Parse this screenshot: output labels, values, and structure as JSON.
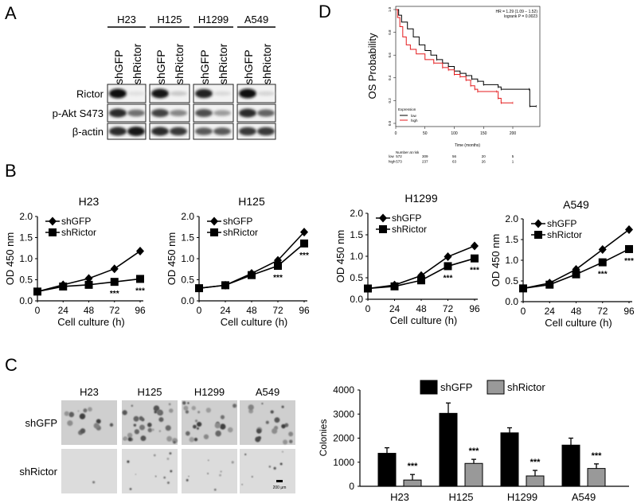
{
  "panel_labels": {
    "a": "A",
    "b": "B",
    "c": "C",
    "d": "D"
  },
  "western_blot": {
    "cell_lines": [
      "H23",
      "H125",
      "H1299",
      "A549"
    ],
    "lanes": [
      "shGFP",
      "shRictor"
    ],
    "rows": [
      {
        "label": "Rictor",
        "band_intensity": [
          [
            1.0,
            0.05
          ],
          [
            0.95,
            0.15
          ],
          [
            0.9,
            0.08
          ],
          [
            1.0,
            0.1
          ]
        ]
      },
      {
        "label": "p-Akt S473",
        "band_intensity": [
          [
            0.85,
            0.55
          ],
          [
            0.75,
            0.45
          ],
          [
            0.7,
            0.35
          ],
          [
            0.85,
            0.6
          ]
        ]
      },
      {
        "label": "β-actin",
        "band_intensity": [
          [
            0.85,
            0.95
          ],
          [
            0.85,
            0.8
          ],
          [
            0.65,
            0.65
          ],
          [
            0.8,
            0.8
          ]
        ]
      }
    ]
  },
  "chart_data": [
    {
      "type": "line",
      "title": "H23",
      "xlabel": "Cell culture (h)",
      "ylabel": "OD 450 nm",
      "x": [
        0,
        24,
        48,
        72,
        96
      ],
      "xticks": [
        "0",
        "24",
        "48",
        "72",
        "96"
      ],
      "ylim": [
        0,
        2
      ],
      "yticks": [
        "0.0",
        "0.5",
        "1.0",
        "1.5",
        "2.0"
      ],
      "legend": "top-left",
      "grid": false,
      "series": [
        {
          "name": "shGFP",
          "marker": "diamond",
          "values": [
            0.22,
            0.38,
            0.53,
            0.76,
            1.18
          ]
        },
        {
          "name": "shRictor",
          "marker": "square",
          "values": [
            0.22,
            0.34,
            0.38,
            0.45,
            0.52
          ]
        }
      ],
      "annotations": [
        {
          "x": 72,
          "text": "***"
        },
        {
          "x": 96,
          "text": "***"
        }
      ]
    },
    {
      "type": "line",
      "title": "H125",
      "xlabel": "Cell culture (h)",
      "ylabel": "OD 450 nm",
      "x": [
        0,
        24,
        48,
        72,
        96
      ],
      "xticks": [
        "0",
        "24",
        "48",
        "72",
        "96"
      ],
      "ylim": [
        0,
        2
      ],
      "yticks": [
        "0.0",
        "0.5",
        "1.0",
        "1.5",
        "2.0"
      ],
      "legend": "top-left",
      "grid": false,
      "series": [
        {
          "name": "shGFP",
          "marker": "diamond",
          "values": [
            0.3,
            0.37,
            0.65,
            0.96,
            1.63
          ]
        },
        {
          "name": "shRictor",
          "marker": "square",
          "values": [
            0.3,
            0.37,
            0.61,
            0.83,
            1.36
          ]
        }
      ],
      "annotations": [
        {
          "x": 72,
          "text": "***"
        },
        {
          "x": 96,
          "text": "***"
        }
      ]
    },
    {
      "type": "line",
      "title": "H1299",
      "xlabel": "Cell culture (h)",
      "ylabel": "OD 450 nm",
      "x": [
        0,
        24,
        48,
        72,
        96
      ],
      "xticks": [
        "0",
        "24",
        "48",
        "72",
        "96"
      ],
      "ylim": [
        0,
        2
      ],
      "yticks": [
        "0.0",
        "0.5",
        "1.0",
        "1.5",
        "2.0"
      ],
      "legend": "top-left",
      "grid": false,
      "series": [
        {
          "name": "shGFP",
          "marker": "diamond",
          "values": [
            0.25,
            0.33,
            0.55,
            0.99,
            1.24
          ]
        },
        {
          "name": "shRictor",
          "marker": "square",
          "values": [
            0.25,
            0.3,
            0.44,
            0.77,
            0.95
          ]
        }
      ],
      "annotations": [
        {
          "x": 72,
          "text": "***"
        },
        {
          "x": 96,
          "text": "***"
        }
      ]
    },
    {
      "type": "line",
      "title": "A549",
      "xlabel": "Cell culture (h)",
      "ylabel": "OD 450 nm",
      "x": [
        0,
        24,
        48,
        72,
        96
      ],
      "xticks": [
        "0",
        "24",
        "48",
        "72",
        "96"
      ],
      "ylim": [
        0,
        2
      ],
      "yticks": [
        "0.0",
        "0.5",
        "1.0",
        "1.5",
        "2.0"
      ],
      "legend": "top-left",
      "grid": false,
      "series": [
        {
          "name": "shGFP",
          "marker": "diamond",
          "values": [
            0.32,
            0.45,
            0.78,
            1.26,
            1.74
          ]
        },
        {
          "name": "shRictor",
          "marker": "square",
          "values": [
            0.32,
            0.41,
            0.66,
            0.95,
            1.27
          ]
        }
      ],
      "annotations": [
        {
          "x": 72,
          "text": "***"
        },
        {
          "x": 96,
          "text": "***"
        }
      ]
    },
    {
      "type": "bar",
      "ylabel": "Colonies",
      "categories": [
        "H23",
        "H125",
        "H1299",
        "A549"
      ],
      "ylim": [
        0,
        4000
      ],
      "yticks": [
        "0",
        "1000",
        "2000",
        "3000",
        "4000"
      ],
      "legend": "top",
      "grid": false,
      "series": [
        {
          "name": "shGFP",
          "color": "#000000",
          "values": [
            1370,
            3030,
            2220,
            1710
          ],
          "errors": [
            230,
            430,
            210,
            290
          ]
        },
        {
          "name": "shRictor",
          "color": "#999999",
          "values": [
            260,
            950,
            430,
            740
          ],
          "errors": [
            230,
            170,
            230,
            190
          ]
        }
      ],
      "annotations": [
        "***",
        "***",
        "***",
        "***"
      ]
    },
    {
      "type": "line",
      "subtype": "kaplan-meier",
      "ylabel": "OS Probability",
      "xlabel": "Time (months)",
      "xlim": [
        0,
        240
      ],
      "xticks": [
        "0",
        "50",
        "100",
        "150",
        "200"
      ],
      "ylim": [
        0,
        1
      ],
      "yticks": [
        "0.0",
        "0.2",
        "0.4",
        "0.6",
        "0.8",
        "1.0"
      ],
      "stats": [
        "HR = 1.29 (1.09 − 1.52)",
        "logrank P = 0.0023"
      ],
      "legend_title": "Expression",
      "legend": "bottom-left",
      "series": [
        {
          "name": "low",
          "color": "#000000",
          "points": [
            [
              0,
              1
            ],
            [
              5,
              0.95
            ],
            [
              10,
              0.89
            ],
            [
              20,
              0.83
            ],
            [
              30,
              0.76
            ],
            [
              40,
              0.69
            ],
            [
              50,
              0.64
            ],
            [
              60,
              0.6
            ],
            [
              70,
              0.56
            ],
            [
              80,
              0.53
            ],
            [
              90,
              0.5
            ],
            [
              100,
              0.46
            ],
            [
              110,
              0.44
            ],
            [
              120,
              0.42
            ],
            [
              130,
              0.39
            ],
            [
              140,
              0.37
            ],
            [
              150,
              0.34
            ],
            [
              175,
              0.32
            ],
            [
              180,
              0.3
            ],
            [
              228,
              0.3
            ],
            [
              229,
              0.15
            ],
            [
              240,
              0.15
            ]
          ]
        },
        {
          "name": "high",
          "color": "#e41a1c",
          "points": [
            [
              0,
              1
            ],
            [
              3,
              0.93
            ],
            [
              7,
              0.85
            ],
            [
              12,
              0.76
            ],
            [
              18,
              0.69
            ],
            [
              25,
              0.65
            ],
            [
              35,
              0.61
            ],
            [
              50,
              0.56
            ],
            [
              65,
              0.53
            ],
            [
              80,
              0.49
            ],
            [
              90,
              0.47
            ],
            [
              100,
              0.43
            ],
            [
              110,
              0.41
            ],
            [
              120,
              0.38
            ],
            [
              128,
              0.33
            ],
            [
              135,
              0.3
            ],
            [
              140,
              0.28
            ],
            [
              172,
              0.28
            ],
            [
              175,
              0.22
            ],
            [
              180,
              0.18
            ],
            [
              200,
              0.18
            ]
          ]
        }
      ],
      "risk_table": {
        "title": "Number at risk",
        "times": [
          0,
          50,
          100,
          150,
          200
        ],
        "rows": [
          {
            "label": "low",
            "color": "#000000",
            "values": [
              "572",
              "309",
              "56",
              "20",
              "5"
            ]
          },
          {
            "label": "high",
            "color": "#e41a1c",
            "values": [
              "573",
              "237",
              "63",
              "26",
              "1"
            ]
          }
        ]
      }
    }
  ],
  "colony_images": {
    "columns": [
      "H23",
      "H125",
      "H1299",
      "A549"
    ],
    "rows": [
      "shGFP",
      "shRictor"
    ],
    "scale_bar": "200 μm"
  }
}
